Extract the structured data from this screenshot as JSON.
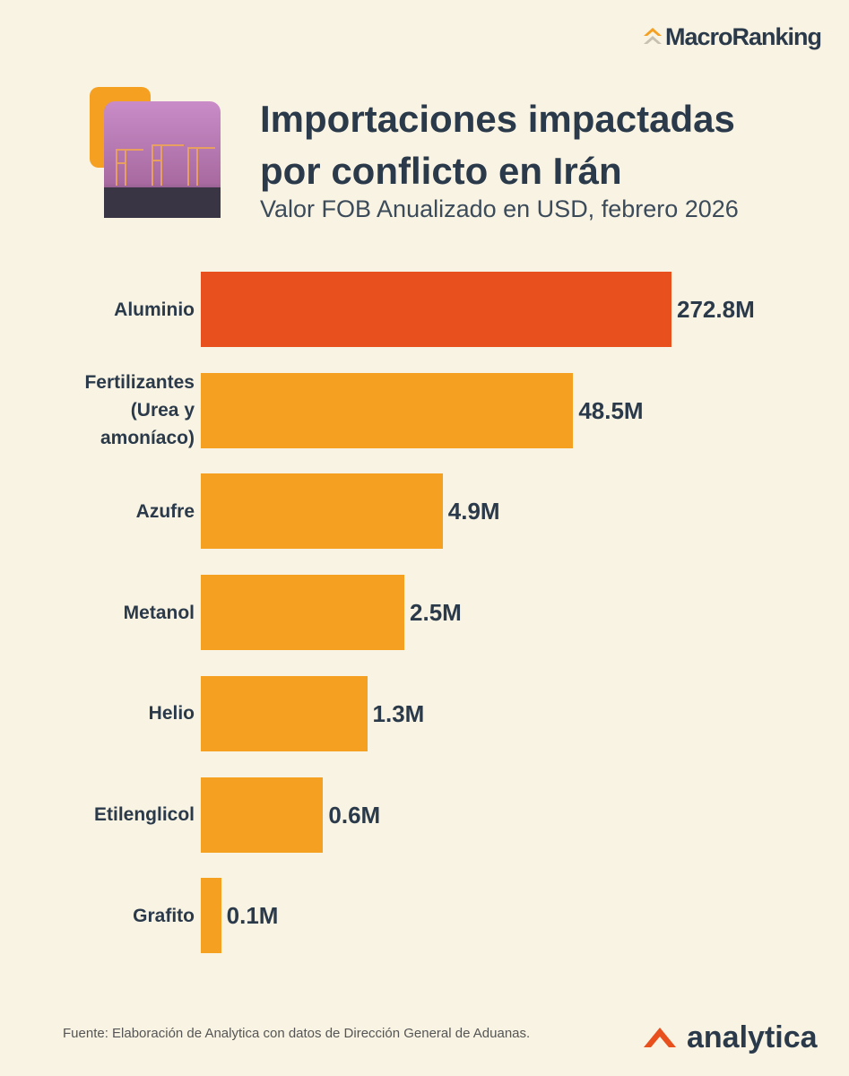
{
  "chart_data": {
    "type": "bar",
    "orientation": "horizontal",
    "title": "Importaciones impactadas por conflicto en Irán",
    "subtitle": "Valor FOB Anualizado en USD, febrero 2026",
    "categories": [
      "Aluminio",
      "Fertilizantes (Urea y amoníaco)",
      "Azufre",
      "Metanol",
      "Helio",
      "Etilenglicol",
      "Grafito"
    ],
    "values": [
      272.8,
      48.5,
      4.9,
      2.5,
      1.3,
      0.6,
      0.1
    ],
    "value_labels": [
      "272.8M",
      "48.5M",
      "4.9M",
      "2.5M",
      "1.3M",
      "0.6M",
      "0.1M"
    ],
    "colors": [
      "#e8501e",
      "#f5a020",
      "#f5a020",
      "#f5a020",
      "#f5a020",
      "#f5a020",
      "#f5a020"
    ],
    "log_scale": true,
    "xlim": [
      0.07,
      272.8
    ],
    "source": "Fuente: Elaboración de Analytica con datos de Dirección General de Aduanas.",
    "brand_top": "MacroRanking",
    "brand_bottom": "analytica"
  }
}
